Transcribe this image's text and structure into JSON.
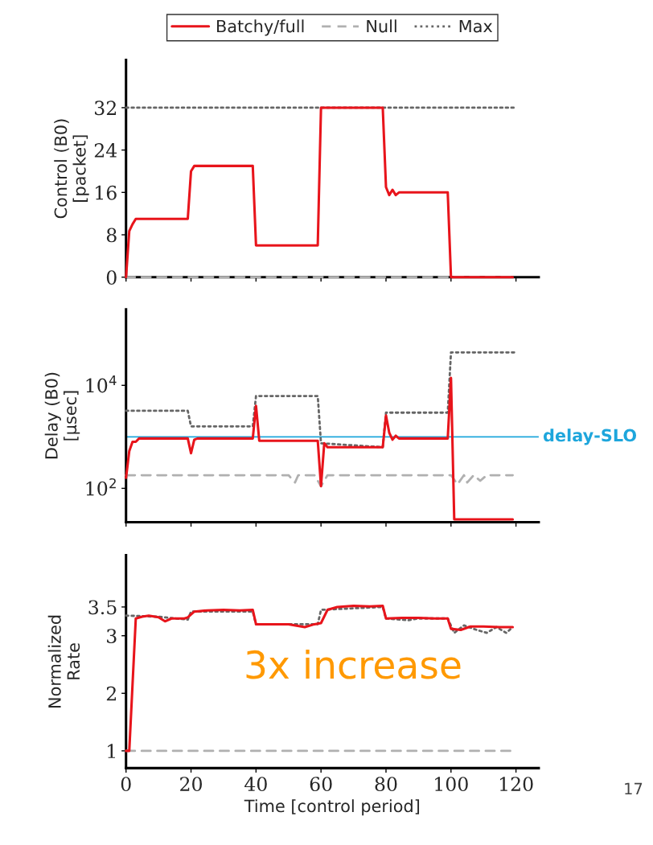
{
  "chart_data": [
    {
      "type": "line",
      "ylabel": "Control (B0)\n[packet]",
      "xlim": [
        0,
        127
      ],
      "xticks": [
        0,
        20,
        40,
        60,
        80,
        100,
        120
      ],
      "ylim": [
        0,
        41
      ],
      "yticks": [
        0,
        8,
        16,
        24,
        32
      ],
      "tick_labels": "y",
      "legend": "top",
      "grid": false,
      "series": [
        {
          "name": "Batchy/full",
          "color": "#e8141b",
          "line_style": "solid",
          "x": [
            0,
            1,
            2,
            3,
            19,
            20,
            21,
            39,
            40,
            59,
            60,
            79,
            80,
            81,
            82,
            83,
            84,
            99,
            100,
            119
          ],
          "values": [
            0,
            8.7,
            10,
            11,
            11,
            20,
            21,
            21,
            6,
            6,
            32,
            32,
            17,
            15.5,
            16.5,
            15.5,
            16,
            16,
            0,
            0
          ]
        },
        {
          "name": "Null",
          "color": "#b0b0b0",
          "line_style": "dashed",
          "x": [
            0,
            119
          ],
          "values": [
            0,
            0
          ]
        },
        {
          "name": "Max",
          "color": "#666666",
          "line_style": "dotted",
          "x": [
            0,
            120
          ],
          "values": [
            32,
            32
          ]
        }
      ]
    },
    {
      "type": "line",
      "ylabel": "Delay (B0)\n[μsec]",
      "log": "y",
      "xlim": [
        0,
        127
      ],
      "xticks": [
        0,
        20,
        40,
        60,
        80,
        100,
        120
      ],
      "ylim": [
        22,
        300000
      ],
      "yticks": [
        {
          "value": 100,
          "label": "10$^{2}$"
        },
        {
          "value": 10000,
          "label": "10$^{4}$"
        }
      ],
      "tick_labels": "y",
      "legend": false,
      "grid": false,
      "ref_lines": [
        {
          "axis": "y",
          "value": 1000,
          "label": "delay-SLO",
          "color": "#1ea6dc"
        }
      ],
      "series": [
        {
          "color": "#e8141b",
          "line_style": "solid",
          "x": [
            0,
            1,
            2,
            3,
            4,
            19,
            20,
            21,
            22,
            39,
            40,
            41,
            59,
            60,
            61,
            62,
            79,
            80,
            81,
            82,
            83,
            84,
            99,
            100,
            101,
            119
          ],
          "values": [
            160,
            530,
            800,
            800,
            930,
            930,
            480,
            880,
            930,
            930,
            4000,
            840,
            840,
            110,
            750,
            630,
            630,
            2600,
            1200,
            880,
            1050,
            930,
            930,
            14000,
            25,
            25
          ]
        },
        {
          "color": "#b0b0b0",
          "line_style": "dashed",
          "x": [
            0,
            50,
            52,
            53,
            58,
            60,
            62,
            100,
            102,
            104,
            105,
            107,
            109,
            111,
            119
          ],
          "values": [
            180,
            180,
            130,
            180,
            180,
            110,
            180,
            180,
            120,
            180,
            130,
            180,
            140,
            180,
            180
          ]
        },
        {
          "color": "#666666",
          "line_style": "dotted",
          "x": [
            0,
            19,
            20,
            39,
            40,
            59,
            60,
            79,
            80,
            99,
            100,
            120
          ],
          "values": [
            3200,
            3200,
            1600,
            1600,
            6200,
            6200,
            750,
            630,
            2950,
            2950,
            43600,
            43600
          ]
        }
      ]
    },
    {
      "type": "line",
      "ylabel": "Normalized\nRate",
      "xlabel": "Time [control period]",
      "xlim": [
        0,
        127
      ],
      "xticks": [
        0,
        20,
        40,
        60,
        80,
        100,
        120
      ],
      "ylim": [
        0.7,
        4.4
      ],
      "yticks": [
        1,
        2,
        3,
        3.5
      ],
      "legend": false,
      "grid": false,
      "annotations": [
        "3x increase",
        "17"
      ],
      "series": [
        {
          "color": "#e8141b",
          "line_style": "solid",
          "x": [
            0,
            1,
            3,
            5,
            7,
            10,
            12,
            14,
            18,
            19,
            21,
            25,
            30,
            35,
            39,
            40,
            45,
            50,
            55,
            58,
            60,
            62,
            65,
            70,
            75,
            79,
            80,
            85,
            90,
            95,
            99,
            100,
            103,
            106,
            110,
            115,
            119
          ],
          "values": [
            1,
            1,
            3.3,
            3.33,
            3.35,
            3.32,
            3.25,
            3.3,
            3.3,
            3.32,
            3.42,
            3.44,
            3.45,
            3.44,
            3.45,
            3.2,
            3.2,
            3.2,
            3.15,
            3.2,
            3.22,
            3.45,
            3.5,
            3.52,
            3.51,
            3.52,
            3.3,
            3.31,
            3.31,
            3.3,
            3.3,
            3.12,
            3.1,
            3.16,
            3.16,
            3.15,
            3.15
          ]
        },
        {
          "color": "#b0b0b0",
          "line_style": "dashed",
          "x": [
            0,
            119
          ],
          "values": [
            1,
            1
          ]
        },
        {
          "color": "#666666",
          "line_style": "dotted",
          "x": [
            0,
            10,
            19,
            20,
            39,
            40,
            59,
            60,
            79,
            80,
            87,
            90,
            99,
            101,
            104,
            108,
            111,
            114,
            117,
            119
          ],
          "values": [
            3.35,
            3.33,
            3.28,
            3.42,
            3.42,
            3.2,
            3.2,
            3.45,
            3.5,
            3.3,
            3.27,
            3.3,
            3.3,
            3.05,
            3.18,
            3.1,
            3.05,
            3.15,
            3.05,
            3.15
          ]
        }
      ]
    }
  ]
}
